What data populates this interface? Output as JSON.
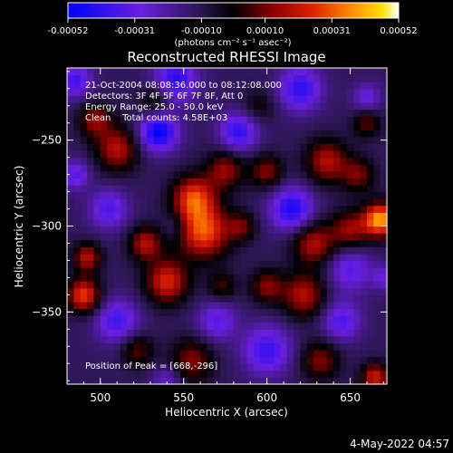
{
  "chart_data": {
    "type": "heatmap",
    "title": "Reconstructed RHESSI Image",
    "xlabel": "Heliocentric X (arcsec)",
    "ylabel": "Heliocentric Y (arcsec)",
    "xlim": [
      480,
      672
    ],
    "ylim": [
      -392,
      -208
    ],
    "x_ticks": [
      500,
      550,
      600,
      650
    ],
    "y_ticks": [
      -250,
      -300,
      -350
    ],
    "colorbar": {
      "range": [
        -0.00052,
        0.00052
      ],
      "tick_values": [
        -0.00052,
        -0.00031,
        -0.0001,
        0.0001,
        0.00031,
        0.00052
      ],
      "tick_labels": [
        "-0.00052",
        "-0.00031",
        "-0.00010",
        "0.00010",
        "0.00031",
        "0.00052"
      ],
      "unit_label": "(photons cm⁻² s⁻¹ asec⁻²)",
      "colormap": "blue-purple-black-red-orange-yellow-white"
    },
    "annotations": [
      "21-Oct-2004 08:08:36.000 to 08:12:08.000",
      "Detectors: 3F 4F 5F 6F 7F 8F, Att 0",
      "Energy Range: 25.0 - 50.0 keV",
      "Clean    Total counts: 4.58E+03"
    ],
    "peak_label": "Position of Peak = [668,-296]",
    "peak": [
      668,
      -296
    ],
    "grid": false,
    "blobs": [
      {
        "x": 668,
        "y": -296,
        "a": 0.00052,
        "s": 7
      },
      {
        "x": 562,
        "y": -303,
        "a": 0.00042,
        "s": 11
      },
      {
        "x": 556,
        "y": -283,
        "a": 0.00038,
        "s": 9
      },
      {
        "x": 540,
        "y": -332,
        "a": 0.00036,
        "s": 9
      },
      {
        "x": 527,
        "y": -310,
        "a": 0.0003,
        "s": 7
      },
      {
        "x": 490,
        "y": -340,
        "a": 0.0004,
        "s": 7
      },
      {
        "x": 492,
        "y": -318,
        "a": 0.0003,
        "s": 6
      },
      {
        "x": 510,
        "y": -255,
        "a": 0.0003,
        "s": 9
      },
      {
        "x": 497,
        "y": -238,
        "a": 0.00026,
        "s": 7
      },
      {
        "x": 575,
        "y": -267,
        "a": 0.00026,
        "s": 8
      },
      {
        "x": 600,
        "y": -268,
        "a": 0.00024,
        "s": 7
      },
      {
        "x": 636,
        "y": -262,
        "a": 0.0003,
        "s": 9
      },
      {
        "x": 655,
        "y": -270,
        "a": 0.00022,
        "s": 7
      },
      {
        "x": 628,
        "y": -310,
        "a": 0.0003,
        "s": 9
      },
      {
        "x": 650,
        "y": -302,
        "a": 0.00026,
        "s": 8
      },
      {
        "x": 622,
        "y": -340,
        "a": 0.0003,
        "s": 9
      },
      {
        "x": 600,
        "y": -335,
        "a": 0.00024,
        "s": 7
      },
      {
        "x": 585,
        "y": -300,
        "a": 0.0002,
        "s": 6
      },
      {
        "x": 555,
        "y": -378,
        "a": 0.00024,
        "s": 9
      },
      {
        "x": 522,
        "y": -372,
        "a": 0.0002,
        "s": 7
      },
      {
        "x": 632,
        "y": -378,
        "a": 0.00024,
        "s": 8
      },
      {
        "x": 665,
        "y": -388,
        "a": 0.00034,
        "s": 6
      },
      {
        "x": 660,
        "y": -240,
        "a": 0.0002,
        "s": 6
      },
      {
        "x": 533,
        "y": -227,
        "a": 0.00018,
        "s": 7
      },
      {
        "x": 573,
        "y": -335,
        "a": 0.00018,
        "s": 6
      },
      {
        "x": 595,
        "y": -230,
        "a": 0.00012,
        "s": 7
      },
      {
        "x": 535,
        "y": -245,
        "a": -0.0004,
        "s": 8
      },
      {
        "x": 545,
        "y": -215,
        "a": -0.00032,
        "s": 9
      },
      {
        "x": 615,
        "y": -290,
        "a": -0.00034,
        "s": 9
      },
      {
        "x": 583,
        "y": -245,
        "a": -0.0003,
        "s": 8
      },
      {
        "x": 620,
        "y": -220,
        "a": -0.0003,
        "s": 9
      },
      {
        "x": 650,
        "y": -325,
        "a": -0.00022,
        "s": 9
      },
      {
        "x": 600,
        "y": -372,
        "a": -0.00028,
        "s": 10
      },
      {
        "x": 505,
        "y": -290,
        "a": -0.00024,
        "s": 8
      },
      {
        "x": 510,
        "y": -355,
        "a": -0.00026,
        "s": 9
      },
      {
        "x": 570,
        "y": -355,
        "a": -0.00022,
        "s": 8
      },
      {
        "x": 645,
        "y": -355,
        "a": -0.00024,
        "s": 8
      },
      {
        "x": 660,
        "y": -225,
        "a": -0.00018,
        "s": 6
      },
      {
        "x": 485,
        "y": -215,
        "a": -0.00026,
        "s": 7
      },
      {
        "x": 485,
        "y": -270,
        "a": -0.00022,
        "s": 6
      },
      {
        "x": 545,
        "y": -300,
        "a": -0.0001,
        "s": 5
      },
      {
        "x": 540,
        "y": -390,
        "a": -0.00016,
        "s": 6
      },
      {
        "x": 670,
        "y": -330,
        "a": -0.00016,
        "s": 5
      }
    ]
  },
  "footer": {
    "timestamp": "4-May-2022 04:57"
  }
}
